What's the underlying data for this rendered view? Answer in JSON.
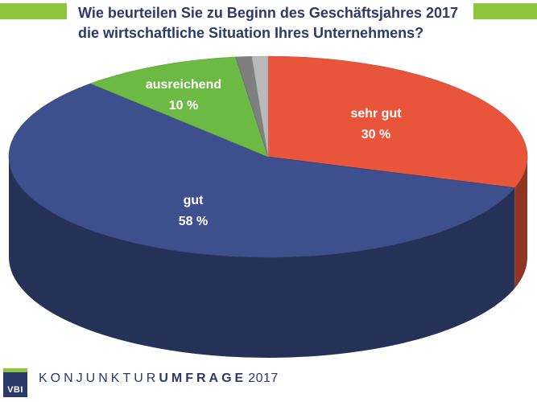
{
  "header": {
    "title_line1": "Wie beurteilen Sie zu Beginn des Geschäftsjahres 2017",
    "title_line2": "die wirtschaftliche Situation Ihres Unternehmens?"
  },
  "footer": {
    "logo": "VBI",
    "survey_light": "KONJUNKTUR",
    "survey_bold": "UMFRAGE",
    "year": "2017"
  },
  "colors": {
    "accent": "#8dc63f",
    "title": "#2b3a6b"
  },
  "chart_data": {
    "type": "pie",
    "title": "Wie beurteilen Sie zu Beginn des Geschäftsjahres 2017 die wirtschaftliche Situation Ihres Unternehmens?",
    "style": "3d",
    "slices": [
      {
        "label": "sehr gut",
        "value": 30,
        "value_label": "30 %",
        "color": "#e8553a"
      },
      {
        "label": "gut",
        "value": 58,
        "value_label": "58 %",
        "color": "#3d4f8c"
      },
      {
        "label": "ausreichend",
        "value": 10,
        "value_label": "10 %",
        "color": "#6cb944"
      },
      {
        "label": "",
        "value": 1,
        "value_label": "",
        "color": "#7f7f80"
      },
      {
        "label": "",
        "value": 1,
        "value_label": "",
        "color": "#b8b9bb"
      }
    ]
  }
}
